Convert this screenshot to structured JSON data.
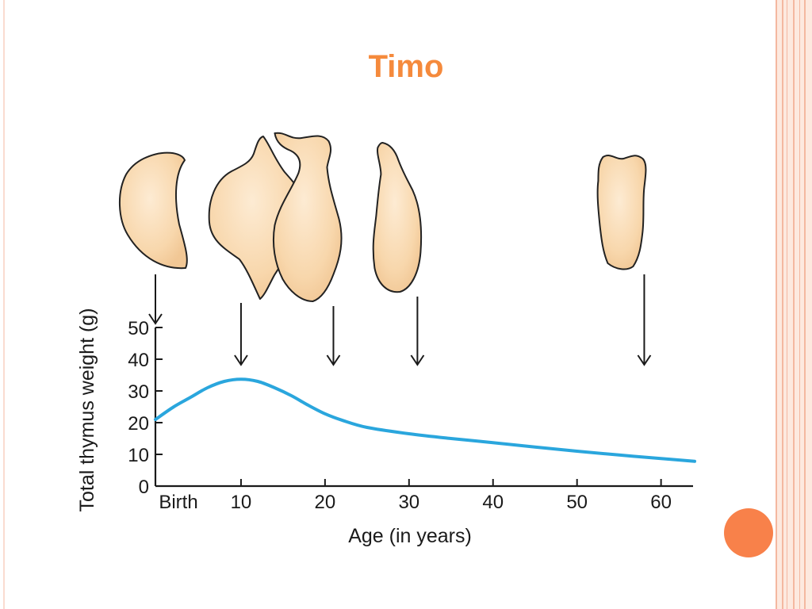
{
  "slide": {
    "title": "Timo",
    "accent_color": "#f58a3c",
    "border_color": "#f4b8a0",
    "dot_color": "#f8814a"
  },
  "chart_data": {
    "type": "line",
    "title": "",
    "xlabel": "Age (in years)",
    "ylabel": "Total thymus weight (g)",
    "xlim": [
      0,
      64
    ],
    "ylim": [
      0,
      50
    ],
    "x_ticks": [
      {
        "value": 0,
        "label": "Birth"
      },
      {
        "value": 10,
        "label": "10"
      },
      {
        "value": 20,
        "label": "20"
      },
      {
        "value": 30,
        "label": "30"
      },
      {
        "value": 40,
        "label": "40"
      },
      {
        "value": 50,
        "label": "50"
      },
      {
        "value": 60,
        "label": "60"
      }
    ],
    "y_ticks": [
      {
        "value": 0,
        "label": "0"
      },
      {
        "value": 10,
        "label": "10"
      },
      {
        "value": 20,
        "label": "20"
      },
      {
        "value": 30,
        "label": "30"
      },
      {
        "value": 40,
        "label": "40"
      },
      {
        "value": 50,
        "label": "50"
      }
    ],
    "series": [
      {
        "color": "#2aa6dd",
        "x": [
          0,
          2,
          4,
          6,
          8,
          10,
          12,
          14,
          16,
          18,
          20,
          22,
          25,
          30,
          35,
          40,
          45,
          50,
          55,
          60,
          64
        ],
        "y": [
          21,
          25,
          28,
          31,
          33,
          33.7,
          33,
          31,
          28.5,
          25.5,
          22.8,
          20.8,
          18.5,
          16.5,
          15,
          13.7,
          12.3,
          11,
          9.8,
          8.7,
          7.8
        ]
      }
    ],
    "grid": false,
    "thymus_illustrations": [
      {
        "age": 0,
        "icon": "thymus-organ-icon"
      },
      {
        "age": 10,
        "icon": "thymus-organ-icon"
      },
      {
        "age": 21,
        "icon": "thymus-organ-icon"
      },
      {
        "age": 31,
        "icon": "thymus-organ-icon"
      },
      {
        "age": 58,
        "icon": "thymus-organ-icon"
      }
    ]
  }
}
